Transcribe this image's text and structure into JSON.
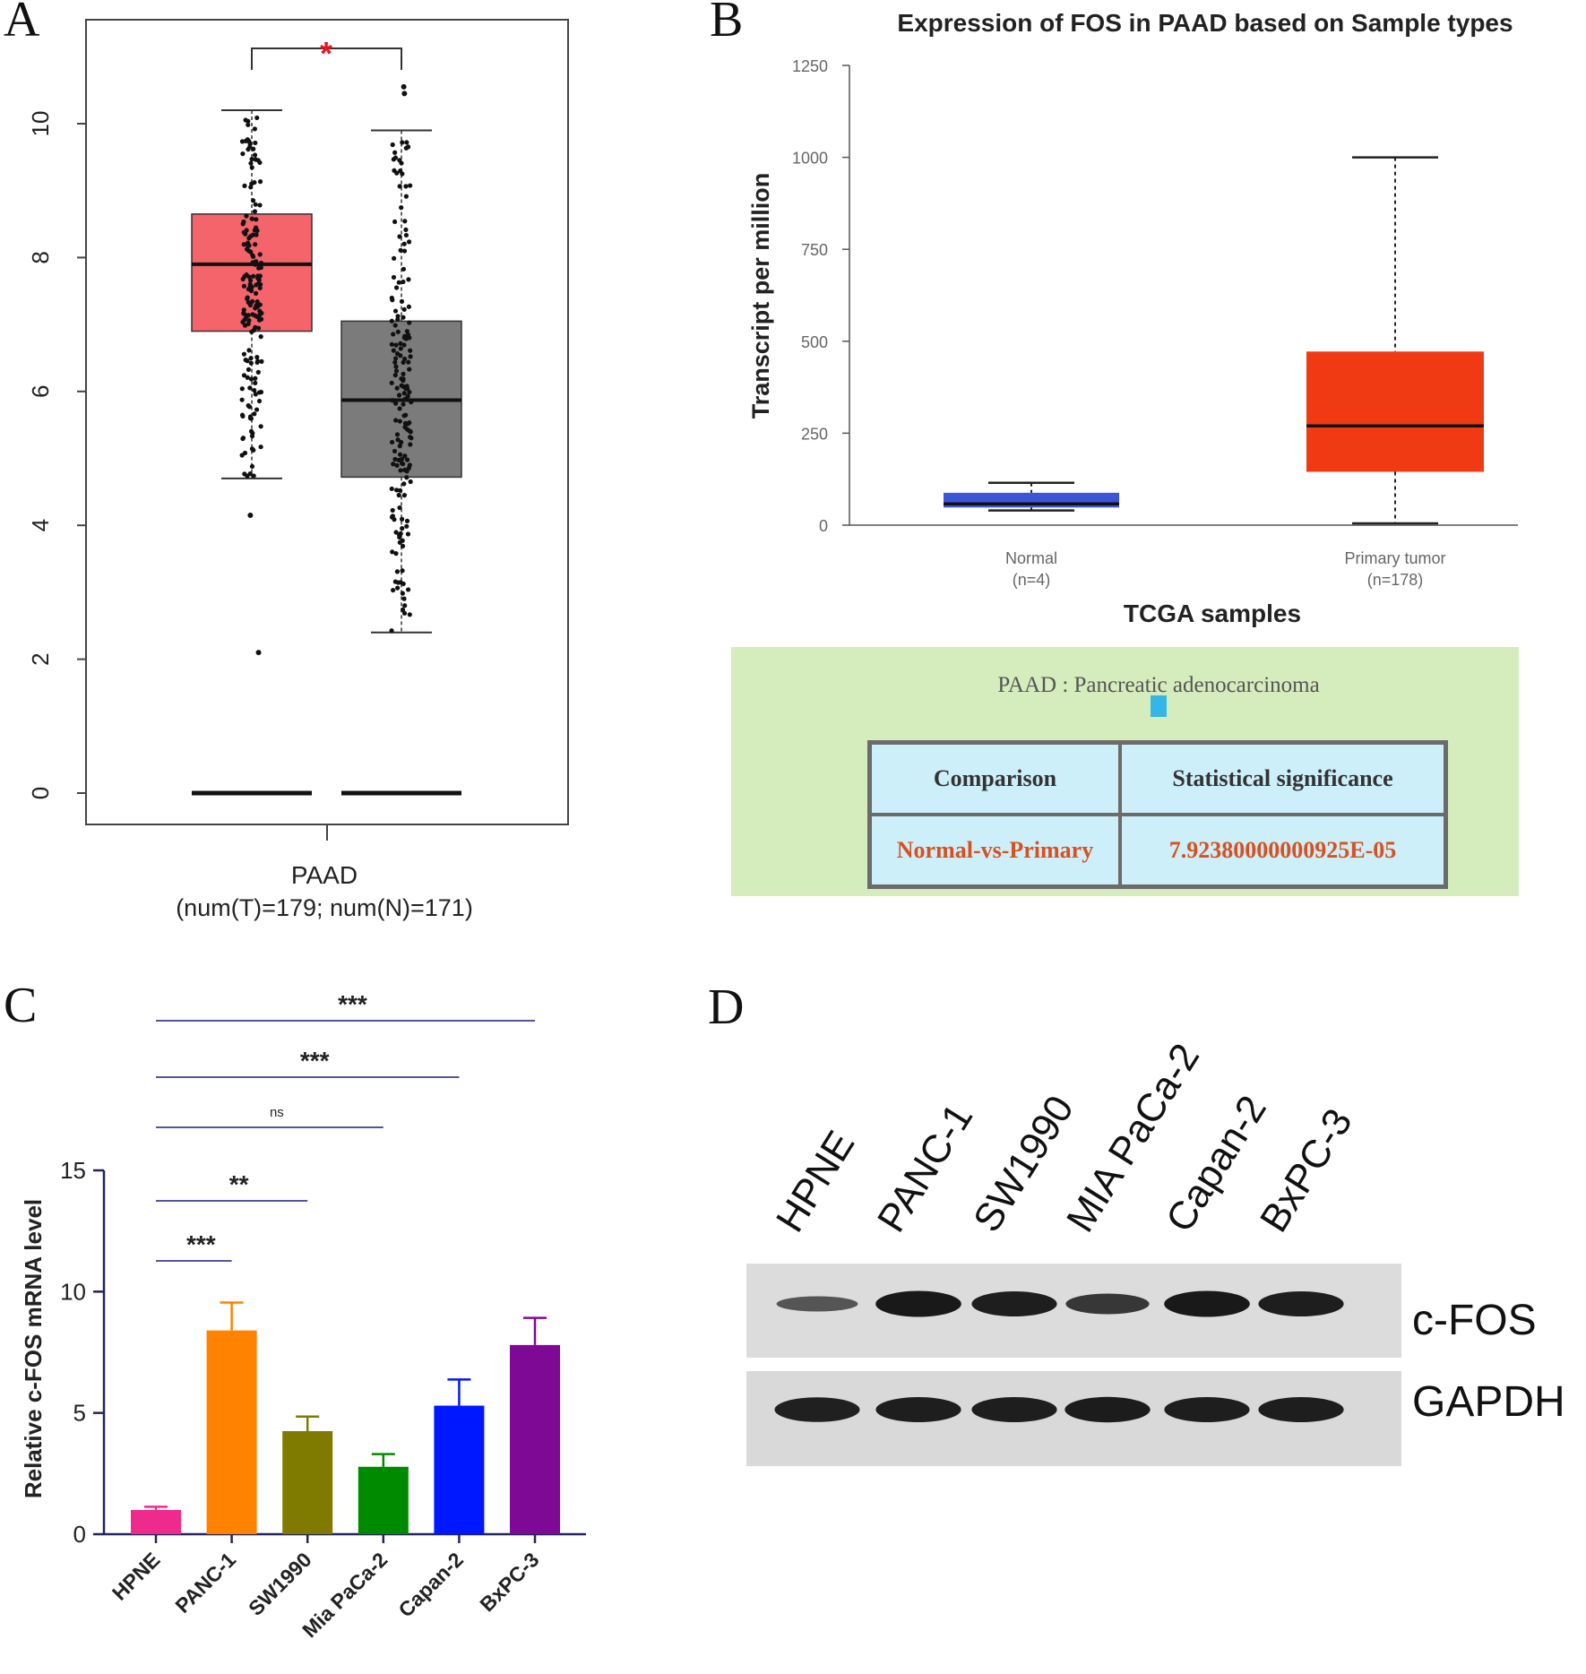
{
  "panels": {
    "A": "A",
    "B": "B",
    "C": "C",
    "D": "D"
  },
  "colors": {
    "tumor_box_A": "#f4646a",
    "normal_box_A": "#7b7b7b",
    "normal_box_B": "#3d56d8",
    "tumor_box_B": "#ef3a14",
    "green_panel": "#d5ecbd",
    "cell_blue": "#cdeffa"
  },
  "chart_data": [
    {
      "panel": "A",
      "type": "box",
      "xlabel": "PAAD",
      "xsublabel": "(num(T)=179; num(N)=171)",
      "yticks": [
        0,
        2,
        4,
        6,
        8,
        10
      ],
      "ylim": [
        -0.45,
        11.6
      ],
      "significance": "*",
      "boxes": [
        {
          "group": "T",
          "q1": 6.9,
          "median": 7.9,
          "q3": 8.65,
          "whisker_low": 4.7,
          "whisker_high": 10.2,
          "outliers": [
            4.15,
            2.1
          ]
        },
        {
          "group": "N",
          "q1": 4.72,
          "median": 5.87,
          "q3": 7.05,
          "whisker_low": 2.4,
          "whisker_high": 9.9,
          "outliers": [
            10.55,
            10.45
          ]
        }
      ],
      "zero_bars": [
        0,
        0
      ]
    },
    {
      "panel": "B",
      "type": "box",
      "title": "Expression of FOS in PAAD based on Sample types",
      "ylabel": "Transcript per million",
      "xlabel": "TCGA samples",
      "yticks": [
        0,
        250,
        500,
        750,
        1000,
        1250
      ],
      "categories": [
        {
          "name": "Normal",
          "n": "(n=4)",
          "whisker_low": 40,
          "q1": 48,
          "median": 58,
          "q3": 88,
          "whisker_high": 115
        },
        {
          "name": "Primary tumor",
          "n": "(n=178)",
          "whisker_low": 5,
          "q1": 145,
          "median": 270,
          "q3": 472,
          "whisker_high": 1000
        }
      ]
    },
    {
      "panel": "C",
      "type": "bar",
      "ylabel": "Relative c-FOS mRNA level",
      "yticks": [
        0,
        5,
        10,
        15
      ],
      "ylim": [
        0,
        15
      ],
      "categories": [
        "HPNE",
        "PANC-1",
        "SW1990",
        "Mia PaCa-2",
        "Capan-2",
        "BxPC-3"
      ],
      "values": [
        1.0,
        8.4,
        4.25,
        2.78,
        5.3,
        7.8
      ],
      "errors": [
        0.13,
        1.15,
        0.6,
        0.52,
        1.08,
        1.12
      ],
      "bar_colors": [
        "#ee2a8c",
        "#ff8200",
        "#7f7b00",
        "#008a00",
        "#0018ff",
        "#7d0994"
      ],
      "comparisons": [
        {
          "to": "PANC-1",
          "label": "***"
        },
        {
          "to": "SW1990",
          "label": "**"
        },
        {
          "to": "Mia PaCa-2",
          "label": "ns"
        },
        {
          "to": "Capan-2",
          "label": "***"
        },
        {
          "to": "BxPC-3",
          "label": "***"
        }
      ]
    }
  ],
  "panel_b_table": {
    "heading": "PAAD : Pancreatic adenocarcinoma",
    "col1": "Comparison",
    "col2": "Statistical significance",
    "row_label": "Normal-vs-Primary",
    "row_value": "7.92380000000925E-05"
  },
  "western_blot": {
    "lanes": [
      "HPNE",
      "PANC-1",
      "SW1990",
      "MIA PaCa-2",
      "Capan-2",
      "BxPC-3"
    ],
    "rows": [
      {
        "label": "c-FOS",
        "intensity": [
          0.35,
          0.95,
          0.9,
          0.65,
          0.95,
          0.9
        ]
      },
      {
        "label": "GAPDH",
        "intensity": [
          0.88,
          0.9,
          0.9,
          0.92,
          0.9,
          0.9
        ]
      }
    ]
  }
}
